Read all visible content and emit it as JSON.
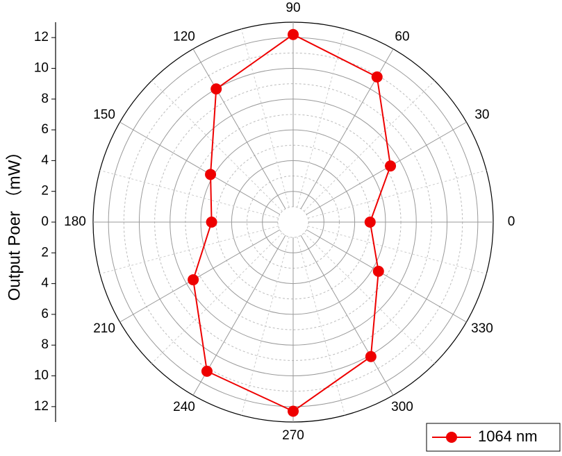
{
  "chart_data": {
    "type": "polar",
    "y_label": "Output Poer （mW）",
    "theta": [
      0,
      30,
      60,
      90,
      120,
      150,
      180,
      210,
      240,
      270,
      300,
      330
    ],
    "thetaticks": [
      0,
      30,
      60,
      90,
      120,
      150,
      180,
      210,
      240,
      270,
      300,
      330
    ],
    "rlim": [
      0,
      13
    ],
    "rticks": [
      0,
      2,
      4,
      6,
      8,
      10,
      12
    ],
    "series": [
      {
        "name": "1064 nm",
        "color": "#ee0000",
        "values": [
          5.0,
          7.3,
          10.9,
          12.2,
          10.0,
          6.2,
          5.3,
          7.5,
          11.2,
          12.3,
          10.1,
          6.4
        ]
      }
    ],
    "grid": true
  }
}
